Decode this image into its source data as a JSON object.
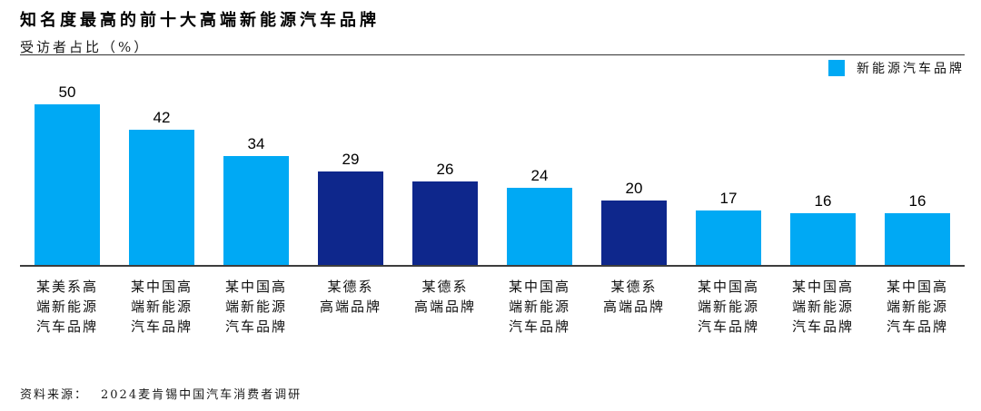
{
  "header": {
    "title": "知名度最高的前十大高端新能源汽车品牌",
    "subtitle": "受访者占比（%）"
  },
  "legend": {
    "label": "新能源汽车品牌"
  },
  "colors": {
    "light_blue": "#00A9F4",
    "dark_blue": "#0E278C",
    "axis": "#3d3d3d"
  },
  "chart_data": {
    "type": "bar",
    "title": "知名度最高的前十大高端新能源汽车品牌",
    "ylabel": "受访者占比（%）",
    "categories": [
      "某美系高端新能源汽车品牌",
      "某中国高端新能源汽车品牌",
      "某中国高端新能源汽车品牌",
      "某德系高端品牌",
      "某德系高端品牌",
      "某中国高端新能源汽车品牌",
      "某德系高端品牌",
      "某中国高端新能源汽车品牌",
      "某中国高端新能源汽车品牌",
      "某中国高端新能源汽车品牌"
    ],
    "category_lines": [
      [
        "某美系高",
        "端新能源",
        "汽车品牌"
      ],
      [
        "某中国高",
        "端新能源",
        "汽车品牌"
      ],
      [
        "某中国高",
        "端新能源",
        "汽车品牌"
      ],
      [
        "某德系",
        "高端品牌"
      ],
      [
        "某德系",
        "高端品牌"
      ],
      [
        "某中国高",
        "端新能源",
        "汽车品牌"
      ],
      [
        "某德系",
        "高端品牌"
      ],
      [
        "某中国高",
        "端新能源",
        "汽车品牌"
      ],
      [
        "某中国高",
        "端新能源",
        "汽车品牌"
      ],
      [
        "某中国高",
        "端新能源",
        "汽车品牌"
      ]
    ],
    "values": [
      50,
      42,
      34,
      29,
      26,
      24,
      20,
      17,
      16,
      16
    ],
    "bar_colors": [
      "light",
      "light",
      "light",
      "dark",
      "dark",
      "light",
      "dark",
      "light",
      "light",
      "light"
    ],
    "ylim": [
      0,
      55
    ],
    "grid": false,
    "legend": [
      "新能源汽车品牌"
    ],
    "legend_position": "top-right",
    "value_labels": true
  },
  "footer": {
    "source_label": "资料来源：",
    "source_text": "2024麦肯锡中国汽车消费者调研"
  }
}
